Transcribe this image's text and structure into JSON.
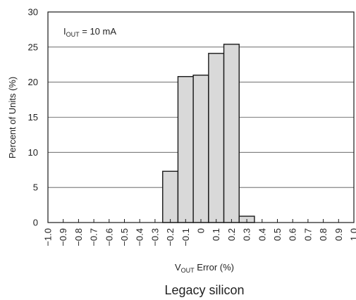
{
  "chart_data": {
    "type": "bar",
    "annotation": {
      "main": "I",
      "sub": "OUT",
      "rest": " = 10 mA"
    },
    "xlabel": {
      "main": "V",
      "sub": "OUT",
      "rest": " Error (%)"
    },
    "ylabel": "Percent of Units (%)",
    "caption": "Legacy silicon",
    "xlim": [
      -1.0,
      1.0
    ],
    "ylim": [
      0,
      30
    ],
    "grid": true,
    "y_ticks": [
      "0",
      "5",
      "10",
      "15",
      "20",
      "25",
      "30"
    ],
    "x_ticks": [
      "−1.0",
      "−0.9",
      "−0.8",
      "−0.7",
      "−0.6",
      "−0.5",
      "−0.4",
      "−0.3",
      "−0.2",
      "−0.1",
      "0",
      "0.1",
      "0.2",
      "0.3",
      "0.4",
      "0.5",
      "0.6",
      "0.7",
      "0.8",
      "0.9",
      "1.0"
    ],
    "bar_width": 0.1,
    "bars": [
      {
        "x": -0.2,
        "value": 7.3
      },
      {
        "x": -0.1,
        "value": 20.8
      },
      {
        "x": 0.0,
        "value": 21.0
      },
      {
        "x": 0.1,
        "value": 24.1
      },
      {
        "x": 0.2,
        "value": 25.4
      },
      {
        "x": 0.3,
        "value": 0.9
      }
    ],
    "colors": {
      "bar_fill": "#d9d9d9",
      "bar_stroke": "#1a1a1a",
      "grid": "#555555",
      "axis": "#1a1a1a"
    }
  }
}
